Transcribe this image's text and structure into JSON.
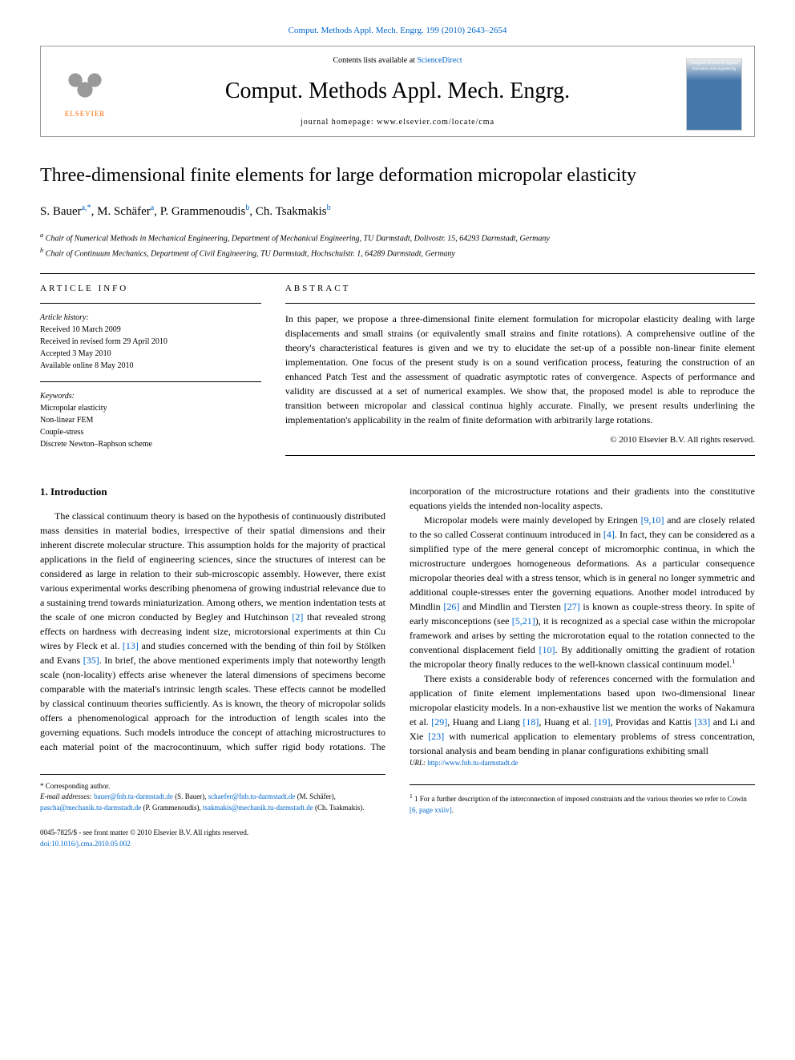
{
  "top_citation": "Comput. Methods Appl. Mech. Engrg. 199 (2010) 2643–2654",
  "header": {
    "contents_text": "Contents lists available at ",
    "sciencedirect": "ScienceDirect",
    "journal_name": "Comput. Methods Appl. Mech. Engrg.",
    "homepage_label": "journal homepage: www.elsevier.com/locate/cma",
    "elsevier_label": "ELSEVIER",
    "cover_text": "Computer methods in applied mechanics and engineering"
  },
  "title": "Three-dimensional finite elements for large deformation micropolar elasticity",
  "authors": [
    {
      "name": "S. Bauer",
      "sup": "a,*"
    },
    {
      "name": "M. Schäfer",
      "sup": "a"
    },
    {
      "name": "P. Grammenoudis",
      "sup": "b"
    },
    {
      "name": "Ch. Tsakmakis",
      "sup": "b"
    }
  ],
  "affiliations": [
    {
      "sup": "a",
      "text": "Chair of Numerical Methods in Mechanical Engineering, Department of Mechanical Engineering, TU Darmstadt, Dolivostr. 15, 64293 Darmstadt, Germany"
    },
    {
      "sup": "b",
      "text": "Chair of Continuum Mechanics, Department of Civil Engineering, TU Darmstadt, Hochschulstr. 1, 64289 Darmstadt, Germany"
    }
  ],
  "article_info": {
    "heading": "ARTICLE INFO",
    "history_label": "Article history:",
    "history": [
      "Received 10 March 2009",
      "Received in revised form 29 April 2010",
      "Accepted 3 May 2010",
      "Available online 8 May 2010"
    ],
    "keywords_label": "Keywords:",
    "keywords": [
      "Micropolar elasticity",
      "Non-linear FEM",
      "Couple-stress",
      "Discrete Newton–Raphson scheme"
    ]
  },
  "abstract": {
    "heading": "ABSTRACT",
    "text": "In this paper, we propose a three-dimensional finite element formulation for micropolar elasticity dealing with large displacements and small strains (or equivalently small strains and finite rotations). A comprehensive outline of the theory's characteristical features is given and we try to elucidate the set-up of a possible non-linear finite element implementation. One focus of the present study is on a sound verification process, featuring the construction of an enhanced Patch Test and the assessment of quadratic asymptotic rates of convergence. Aspects of performance and validity are discussed at a set of numerical examples. We show that, the proposed model is able to reproduce the transition between micropolar and classical continua highly accurate. Finally, we present results underlining the implementation's applicability in the realm of finite deformation with arbitrarily large rotations.",
    "copyright": "© 2010 Elsevier B.V. All rights reserved."
  },
  "body": {
    "section_heading": "1. Introduction",
    "p1_a": "The classical continuum theory is based on the hypothesis of continuously distributed mass densities in material bodies, irrespective of their spatial dimensions and their inherent discrete molecular structure. This assumption holds for the majority of practical applications in the field of engineering sciences, since the structures of interest can be considered as large in relation to their sub-microscopic assembly. However, there exist various experimental works describing phenomena of growing industrial relevance due to a sustaining trend towards miniaturization. Among others, we mention indentation tests at the scale of one micron conducted by Begley and Hutchinson ",
    "ref2": "[2]",
    "p1_b": " that revealed strong effects on hardness with decreasing indent size, microtorsional experiments at thin Cu wires by Fleck et al. ",
    "ref13": "[13]",
    "p1_c": " and studies concerned with the bending of thin foil by Stölken and Evans ",
    "ref35": "[35]",
    "p1_d": ". In brief, the above mentioned experiments imply that noteworthy length scale (non-locality) effects arise whenever the lateral dimensions of specimens become comparable with the material's intrinsic length scales. These effects cannot be modelled by classical continuum theories sufficiently. As is known, the theory of micropolar solids offers a phenomenological approach for the introduction of length scales into the governing equations. Such models introduce the concept of attaching microstructures to each material point of the macrocontinuum, which suffer rigid body rotations. The incorporation of the microstructure rotations and their gradients into the constitutive equations yields the intended non-locality aspects.",
    "p2_a": "Micropolar models were mainly developed by Eringen ",
    "ref910": "[9,10]",
    "p2_b": " and are closely related to the so called Cosserat continuum introduced in ",
    "ref4": "[4]",
    "p2_c": ". In fact, they can be considered as a simplified type of the mere general concept of micromorphic continua, in which the microstructure undergoes homogeneous deformations. As a particular consequence micropolar theories deal with a stress tensor, which is in general no longer symmetric and additional couple-stresses enter the governing equations. Another model introduced by Mindlin ",
    "ref26": "[26]",
    "p2_d": " and Mindlin and Tiersten ",
    "ref27": "[27]",
    "p2_e": " is known as couple-stress theory. In spite of early misconceptions (see ",
    "ref521": "[5,21]",
    "p2_f": "), it is recognized as a special case within the micropolar framework and arises by setting the microrotation equal to the rotation connected to the conventional displacement field ",
    "ref10": "[10]",
    "p2_g": ". By additionally omitting the gradient of rotation the micropolar theory finally reduces to the well-known classical continuum model.",
    "fn1": "1",
    "p3_a": "There exists a considerable body of references concerned with the formulation and application of finite element implementations based upon two-dimensional linear micropolar elasticity models. In a non-exhaustive list we mention the works of Nakamura et al. ",
    "ref29": "[29]",
    "p3_b": ", Huang and Liang ",
    "ref18": "[18]",
    "p3_c": ", Huang et al. ",
    "ref19": "[19]",
    "p3_d": ", Providas and Kattis ",
    "ref33": "[33]",
    "p3_e": " and Li and Xie ",
    "ref23": "[23]",
    "p3_f": " with numerical application to elementary problems of stress concentration, torsional analysis and beam bending in planar configurations exhibiting small"
  },
  "footer": {
    "corresponding": "* Corresponding author.",
    "email_label": "E-mail addresses: ",
    "emails": [
      {
        "addr": "bauer@fnb.tu-darmstadt.de",
        "who": "(S. Bauer)"
      },
      {
        "addr": "schaefer@fnb.tu-darmstadt.de",
        "who": "(M. Schäfer)"
      },
      {
        "addr": "pascha@mechanik.tu-darmstadt.de",
        "who": "(P. Grammenoudis)"
      },
      {
        "addr": "tsakmakis@mechanik.tu-darmstadt.de",
        "who": "(Ch. Tsakmakis)"
      }
    ],
    "url_label": "URL: ",
    "url": "http://www.fnb.tu-darmstadt.de",
    "footnote1_a": "1 For a further description of the interconnection of imposed constraints and the various theories we refer to Cowin ",
    "footnote1_ref": "[6, page xxiiv]",
    "footnote1_b": ".",
    "issn": "0045-7825/$ - see front matter © 2010 Elsevier B.V. All rights reserved.",
    "doi": "doi:10.1016/j.cma.2010.05.002"
  }
}
